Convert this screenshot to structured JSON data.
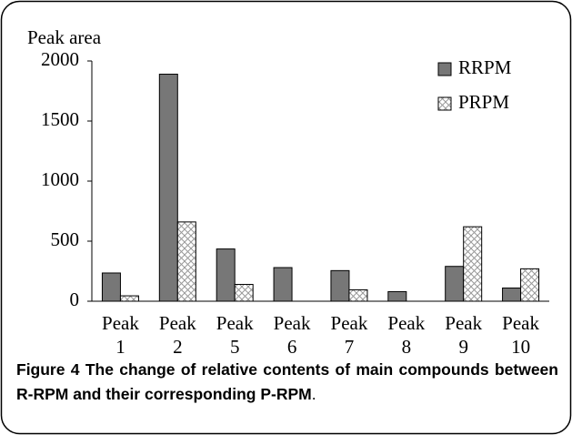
{
  "chart_data": {
    "type": "bar",
    "y_label": "Peak area",
    "categories": [
      "Peak 1",
      "Peak 2",
      "Peak 5",
      "Peak 6",
      "Peak 7",
      "Peak 8",
      "Peak 9",
      "Peak 10"
    ],
    "series": [
      {
        "name": "RRPM",
        "color": "#777777",
        "values": [
          235,
          1890,
          435,
          280,
          255,
          80,
          290,
          110
        ]
      },
      {
        "name": "PRPM",
        "color": "#ffffff",
        "pattern": "crosshatch",
        "values": [
          45,
          660,
          140,
          null,
          95,
          null,
          620,
          270
        ]
      }
    ],
    "ylim": [
      0,
      2000
    ],
    "yticks": [
      0,
      500,
      1000,
      1500,
      2000
    ],
    "legend": "upper right"
  },
  "caption": {
    "label": "Figure 4",
    "text": "The change of relative contents of main compounds between R-RPM and their corresponding P-RPM",
    "end": "."
  }
}
